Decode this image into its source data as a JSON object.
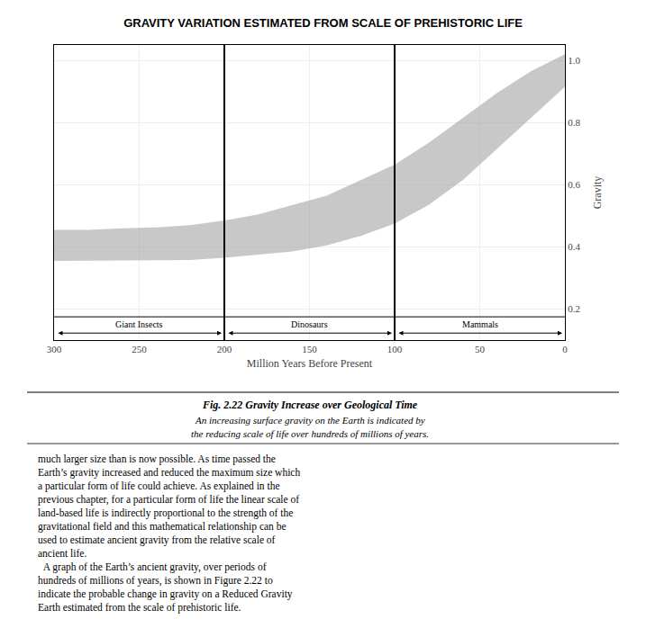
{
  "chart_data": {
    "type": "band",
    "title": "GRAVITY VARIATION ESTIMATED FROM SCALE OF PREHISTORIC LIFE",
    "xlabel": "Million Years Before Present",
    "ylabel": "Gravity",
    "x": [
      300,
      280,
      260,
      240,
      220,
      200,
      180,
      160,
      140,
      120,
      100,
      80,
      60,
      40,
      20,
      0
    ],
    "upper": [
      0.455,
      0.455,
      0.46,
      0.463,
      0.47,
      0.485,
      0.505,
      0.535,
      0.565,
      0.615,
      0.665,
      0.735,
      0.815,
      0.895,
      0.965,
      1.02
    ],
    "lower": [
      0.355,
      0.355,
      0.356,
      0.357,
      0.358,
      0.365,
      0.375,
      0.385,
      0.405,
      0.435,
      0.475,
      0.535,
      0.615,
      0.715,
      0.815,
      0.915
    ],
    "color": "#aaaaaa",
    "xlim": [
      300,
      0
    ],
    "ylim": [
      0.1,
      1.05
    ],
    "xticks": [
      300,
      250,
      200,
      150,
      100,
      50,
      0
    ],
    "yticks": [
      0.2,
      0.4,
      0.6,
      0.8,
      {
        "value": 1.0,
        "label": "1.0"
      }
    ],
    "grid": true,
    "dividers_x": [
      200,
      100
    ],
    "era_strip_top": 0.175,
    "eras": [
      {
        "text": "Giant Insects",
        "from": 300,
        "to": 200
      },
      {
        "text": "Dinosaurs",
        "from": 200,
        "to": 100
      },
      {
        "text": "Mammals",
        "from": 100,
        "to": 0
      }
    ],
    "caption": "Fig. 2.22 Gravity Increase over Geological Time",
    "caption_lines": [
      "An increasing surface gravity on the Earth is indicated by",
      "the reducing scale of life over hundreds of millions of years."
    ],
    "body_lines": [
      "much larger size than is now possible. As time passed the",
      "Earth’s gravity increased and reduced the maximum size which",
      "a particular form of life could achieve. As explained in the",
      "previous chapter, for a particular form of life the linear scale of",
      "land-based life is indirectly proportional to the strength of the",
      "gravitational field and this mathematical relationship can be",
      "used to estimate ancient gravity from the relative scale of",
      "ancient life.",
      "  A graph of the Earth’s ancient gravity, over periods of",
      "hundreds of millions of years, is shown in Figure 2.22 to",
      "indicate the probable change in gravity on a Reduced Gravity",
      "Earth estimated from the scale of prehistoric life."
    ]
  }
}
